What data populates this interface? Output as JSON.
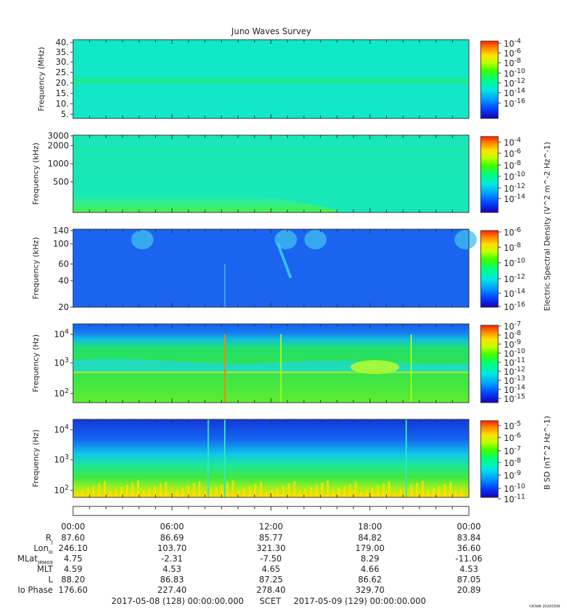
{
  "title": "Juno Waves Survey",
  "footer": {
    "start": "2017-05-08 (128) 00:00:00.000",
    "mid": "SCET",
    "end": "2017-05-09 (129) 00:00:00.000",
    "stamp": "UIOWA 20200306"
  },
  "colors": {
    "colorbar": [
      "#1a00b4",
      "#0040ff",
      "#00a0ff",
      "#00e8e0",
      "#00ff80",
      "#40ff00",
      "#c0ff00",
      "#ffe000",
      "#ff8000",
      "#ff2000"
    ]
  },
  "chart_data": [
    {
      "type": "heatmap",
      "name": "panel-1",
      "ylabel": "Frequency (MHz)",
      "yticks": [
        "40.",
        "35.",
        "30.",
        "25.",
        "20.",
        "15.",
        "10.",
        "5."
      ],
      "ylim": [
        3,
        41
      ],
      "colorbar": {
        "ticks": [
          "10^-4",
          "10^-6",
          "10^-8",
          "10^-10",
          "10^-12",
          "10^-14",
          "10^-16"
        ],
        "label": ""
      },
      "features": [
        {
          "kind": "band",
          "freq_MHz": 21,
          "level": "slightly higher"
        }
      ],
      "base_color": "#10e8c8"
    },
    {
      "type": "heatmap",
      "name": "panel-2",
      "ylabel": "Frequency (kHz)",
      "yticks": [
        "3000",
        "2000",
        "1000",
        "500"
      ],
      "ylim": [
        100,
        3000
      ],
      "colorbar": {
        "ticks": [
          "10^-4",
          "10^-6",
          "10^-8",
          "10^-10",
          "10^-12",
          "10^-14"
        ],
        "label": "Electric Spectral Density (V^2 m^-2 Hz^-1)"
      },
      "features": [
        {
          "kind": "band",
          "freq_kHz": 1700
        },
        {
          "kind": "band",
          "freq_kHz": 1150
        },
        {
          "kind": "low-frequency enhancement",
          "level": "green"
        }
      ],
      "base_color": "#18e8b8"
    },
    {
      "type": "heatmap",
      "name": "panel-3",
      "ylabel": "Frequency (kHz)",
      "yticks": [
        "140",
        "100",
        "60",
        "40",
        "20"
      ],
      "ylim": [
        20,
        140
      ],
      "colorbar": {
        "ticks": [
          "10^-6",
          "10^-8",
          "10^-10",
          "10^-12",
          "10^-14",
          "10^-16"
        ],
        "label": ""
      },
      "features": [
        {
          "kind": "bursts",
          "hours": [
            4.2,
            12.9,
            14.7,
            23.8
          ]
        }
      ],
      "base_color": "#1a64f0"
    },
    {
      "type": "heatmap",
      "name": "panel-4",
      "ylabel": "Frequency (Hz)",
      "yticks": [
        "10^4",
        "10^3",
        "10^2"
      ],
      "ylim": [
        50,
        20000
      ],
      "colorbar": {
        "ticks": [
          "10^-7",
          "10^-8",
          "10^-9",
          "10^-10",
          "10^-11",
          "10^-12",
          "10^-13",
          "10^-14",
          "10^-15"
        ],
        "label": ""
      },
      "features": [
        {
          "kind": "spike",
          "hour": 9.2
        },
        {
          "kind": "spike",
          "hour": 12.6
        },
        {
          "kind": "spike",
          "hour": 20.5
        }
      ],
      "base_color": "#30e050"
    },
    {
      "type": "heatmap",
      "name": "panel-5",
      "ylabel": "Frequency (Hz)",
      "yticks": [
        "10^4",
        "10^3",
        "10^2"
      ],
      "ylim": [
        50,
        25000
      ],
      "colorbar": {
        "ticks": [
          "10^-5",
          "10^-6",
          "10^-7",
          "10^-8",
          "10^-9",
          "10^-10",
          "10^-11"
        ],
        "label": "B SD (nT^2 Hz^-1)"
      },
      "features": [
        {
          "kind": "spike",
          "hour": 8.2
        },
        {
          "kind": "spike",
          "hour": 9.2
        },
        {
          "kind": "spike",
          "hour": 20.2
        }
      ],
      "base_color": "#40e040"
    }
  ],
  "xticks": [
    "00:00",
    "06:00",
    "12:00",
    "18:00",
    "00:00"
  ],
  "ephemeris": [
    {
      "label": "R_J",
      "values": [
        "87.60",
        "86.69",
        "85.77",
        "84.82",
        "83.84"
      ]
    },
    {
      "label": "Lon_III",
      "values": [
        "246.10",
        "103.70",
        "321.30",
        "179.00",
        "36.60"
      ]
    },
    {
      "label": "MLat_JRM09",
      "values": [
        "4.75",
        "-2.31",
        "-7.50",
        "8.29",
        "-11.06"
      ]
    },
    {
      "label": "MLT",
      "values": [
        "4.59",
        "4.53",
        "4.65",
        "4.66",
        "4.53"
      ]
    },
    {
      "label": "L",
      "values": [
        "88.20",
        "86.83",
        "87.25",
        "86.62",
        "87.05"
      ]
    },
    {
      "label": "Io Phase",
      "values": [
        "176.60",
        "227.40",
        "278.40",
        "329.70",
        "20.89"
      ]
    }
  ]
}
